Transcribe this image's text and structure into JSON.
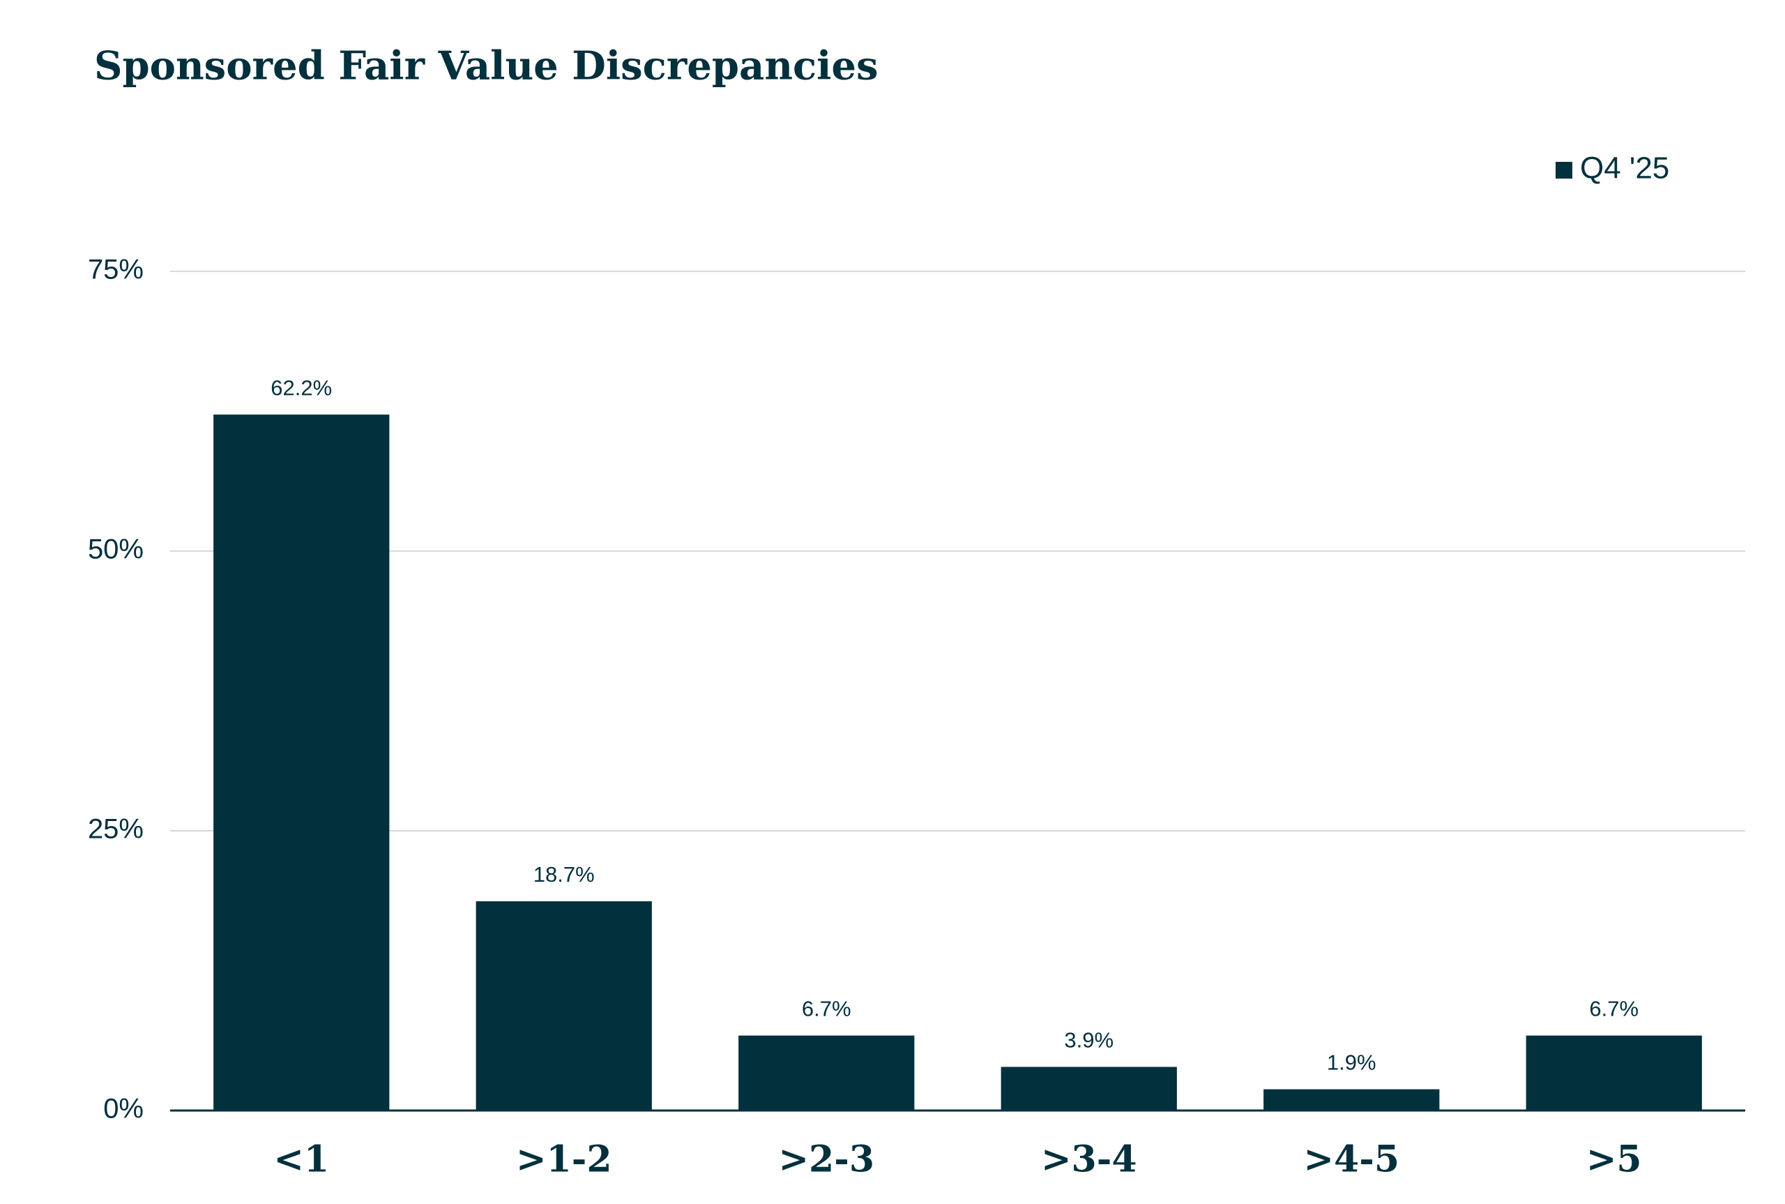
{
  "chart_data": {
    "type": "bar",
    "title": "Sponsored Fair Value Discrepancies",
    "categories": [
      "<1",
      ">1-2",
      ">2-3",
      ">3-4",
      ">4-5",
      ">5"
    ],
    "series": [
      {
        "name": "Q4 '25",
        "color": "#03303d",
        "values": [
          62.2,
          18.7,
          6.7,
          3.9,
          1.9,
          6.7
        ],
        "value_labels": [
          "62.2%",
          "18.7%",
          "6.7%",
          "3.9%",
          "1.9%",
          "6.7%"
        ]
      }
    ],
    "ylim": [
      0,
      75
    ],
    "yticks": [
      {
        "value": 0,
        "label": "0%"
      },
      {
        "value": 25,
        "label": "25%"
      },
      {
        "value": 50,
        "label": "50%"
      },
      {
        "value": 75,
        "label": "75%"
      }
    ],
    "grid": true,
    "legend": "top-right"
  }
}
